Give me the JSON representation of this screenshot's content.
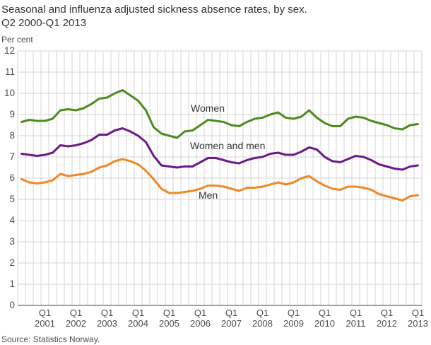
{
  "header": {
    "title_line1": "Seasonal and influenza adjusted sickness absence rates, by sex.",
    "title_line2": "Q2 2000-Q1 2013"
  },
  "footer": {
    "source": "Source: Statistics Norway."
  },
  "chart_data": {
    "type": "line",
    "title": "Seasonal and influenza adjusted sickness absence rates, by sex. Q2 2000-Q1 2013",
    "xlabel": "",
    "ylabel": "Per cent",
    "ylim": [
      0,
      12
    ],
    "grid": true,
    "legend_position": "inline-labels",
    "grid_color": "#d6d6d6",
    "axis_color": "#808080",
    "tick_color": "#4d4d4d",
    "yticks": [
      0,
      1,
      2,
      3,
      4,
      5,
      6,
      7,
      8,
      9,
      10,
      11,
      12
    ],
    "xticks": [
      {
        "quarter": "Q1",
        "year": "2001"
      },
      {
        "quarter": "Q1",
        "year": "2002"
      },
      {
        "quarter": "Q1",
        "year": "2003"
      },
      {
        "quarter": "Q1",
        "year": "2004"
      },
      {
        "quarter": "Q1",
        "year": "2005"
      },
      {
        "quarter": "Q1",
        "year": "2006"
      },
      {
        "quarter": "Q1",
        "year": "2007"
      },
      {
        "quarter": "Q1",
        "year": "2008"
      },
      {
        "quarter": "Q1",
        "year": "2009"
      },
      {
        "quarter": "Q1",
        "year": "2010"
      },
      {
        "quarter": "Q1",
        "year": "2011"
      },
      {
        "quarter": "Q1",
        "year": "2012"
      },
      {
        "quarter": "Q1",
        "year": "2013"
      }
    ],
    "categories": [
      "2000 Q2",
      "2000 Q3",
      "2000 Q4",
      "2001 Q1",
      "2001 Q2",
      "2001 Q3",
      "2001 Q4",
      "2002 Q1",
      "2002 Q2",
      "2002 Q3",
      "2002 Q4",
      "2003 Q1",
      "2003 Q2",
      "2003 Q3",
      "2003 Q4",
      "2004 Q1",
      "2004 Q2",
      "2004 Q3",
      "2004 Q4",
      "2005 Q1",
      "2005 Q2",
      "2005 Q3",
      "2005 Q4",
      "2006 Q1",
      "2006 Q2",
      "2006 Q3",
      "2006 Q4",
      "2007 Q1",
      "2007 Q2",
      "2007 Q3",
      "2007 Q4",
      "2008 Q1",
      "2008 Q2",
      "2008 Q3",
      "2008 Q4",
      "2009 Q1",
      "2009 Q2",
      "2009 Q3",
      "2009 Q4",
      "2010 Q1",
      "2010 Q2",
      "2010 Q3",
      "2010 Q4",
      "2011 Q1",
      "2011 Q2",
      "2011 Q3",
      "2011 Q4",
      "2012 Q1",
      "2012 Q2",
      "2012 Q3",
      "2012 Q4",
      "2013 Q1"
    ],
    "series": [
      {
        "name": "Women",
        "color": "#4e8b1f",
        "values": [
          8.65,
          8.75,
          8.7,
          8.7,
          8.8,
          9.2,
          9.25,
          9.2,
          9.3,
          9.5,
          9.75,
          9.8,
          10.0,
          10.15,
          9.9,
          9.65,
          9.2,
          8.4,
          8.1,
          8.0,
          7.9,
          8.2,
          8.25,
          8.5,
          8.75,
          8.7,
          8.65,
          8.5,
          8.45,
          8.65,
          8.8,
          8.85,
          9.0,
          9.1,
          8.85,
          8.8,
          8.9,
          9.2,
          8.85,
          8.6,
          8.45,
          8.45,
          8.8,
          8.9,
          8.85,
          8.7,
          8.6,
          8.5,
          8.35,
          8.3,
          8.5,
          8.55
        ]
      },
      {
        "name": "Women and men",
        "color": "#6d1a87",
        "values": [
          7.15,
          7.1,
          7.05,
          7.1,
          7.2,
          7.55,
          7.5,
          7.55,
          7.65,
          7.8,
          8.05,
          8.05,
          8.25,
          8.35,
          8.2,
          8.0,
          7.7,
          7.05,
          6.6,
          6.55,
          6.5,
          6.55,
          6.55,
          6.75,
          6.95,
          6.95,
          6.85,
          6.75,
          6.7,
          6.85,
          6.95,
          7.0,
          7.15,
          7.2,
          7.1,
          7.1,
          7.25,
          7.45,
          7.35,
          7.0,
          6.8,
          6.75,
          6.9,
          7.05,
          7.0,
          6.85,
          6.65,
          6.55,
          6.45,
          6.4,
          6.55,
          6.6
        ]
      },
      {
        "name": "Men",
        "color": "#ee8928",
        "values": [
          5.95,
          5.8,
          5.75,
          5.8,
          5.9,
          6.2,
          6.1,
          6.15,
          6.2,
          6.3,
          6.5,
          6.6,
          6.8,
          6.9,
          6.8,
          6.65,
          6.35,
          5.95,
          5.5,
          5.3,
          5.3,
          5.35,
          5.4,
          5.5,
          5.65,
          5.65,
          5.6,
          5.5,
          5.4,
          5.55,
          5.55,
          5.6,
          5.7,
          5.8,
          5.7,
          5.8,
          6.0,
          6.1,
          5.85,
          5.65,
          5.5,
          5.45,
          5.6,
          5.6,
          5.55,
          5.45,
          5.25,
          5.15,
          5.05,
          4.95,
          5.15,
          5.2
        ]
      }
    ]
  }
}
